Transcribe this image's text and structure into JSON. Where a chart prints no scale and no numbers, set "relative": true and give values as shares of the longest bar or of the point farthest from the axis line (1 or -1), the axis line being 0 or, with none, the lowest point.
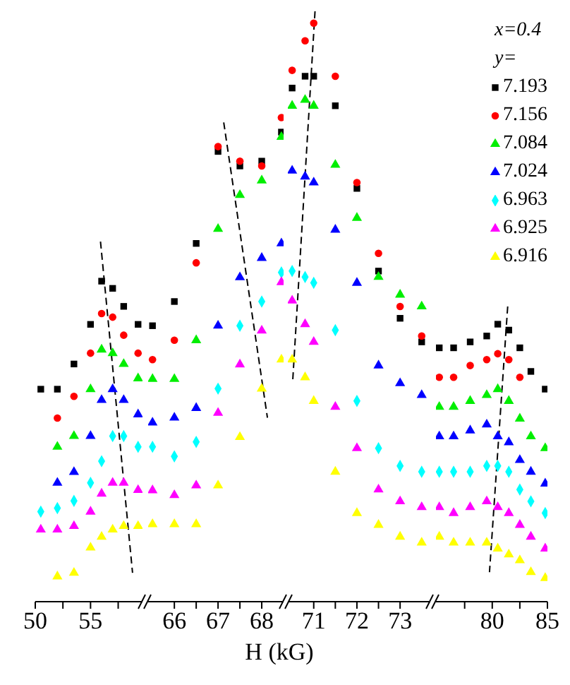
{
  "chart_data": [
    {
      "type": "scatter",
      "relative": true,
      "xlim": [
        50,
        59.7
      ],
      "xticks": [
        50,
        {
          "value": 52.5,
          "label": null
        },
        55,
        {
          "value": 57.5,
          "label": null
        }
      ],
      "x": [
        50.5,
        52,
        53.5,
        55,
        56,
        57,
        58,
        59.3
      ],
      "series": [
        {
          "color": "#000000",
          "marker": "square",
          "values": [
            0.59,
            0.59,
            0.66,
            0.77,
            0.89,
            0.87,
            0.82,
            0.77
          ]
        },
        {
          "color": "#ff0000",
          "marker": "circle",
          "values": [
            null,
            0.51,
            0.57,
            0.69,
            0.8,
            0.79,
            0.74,
            0.69
          ]
        },
        {
          "color": "#00ee00",
          "marker": "triangle",
          "values": [
            null,
            0.43,
            0.46,
            0.59,
            0.7,
            0.69,
            0.66,
            0.62
          ]
        },
        {
          "color": "#0000ff",
          "marker": "triangle",
          "values": [
            null,
            0.33,
            0.36,
            0.46,
            0.56,
            0.59,
            0.56,
            0.52
          ]
        },
        {
          "color": "#00ffff",
          "marker": "diamond",
          "values": [
            0.25,
            0.26,
            0.28,
            0.33,
            0.39,
            0.46,
            0.46,
            0.43
          ]
        },
        {
          "color": "#ff00ff",
          "marker": "triangle",
          "values": [
            0.2,
            0.2,
            0.21,
            0.25,
            0.3,
            0.33,
            0.33,
            0.31
          ]
        },
        {
          "color": "#ffff00",
          "marker": "triangle",
          "values": [
            null,
            0.07,
            0.08,
            0.15,
            0.18,
            0.2,
            0.21,
            0.21
          ]
        },
        {
          "type": "line",
          "line_style": "dashed",
          "color": "#000000",
          "x": [
            55.9,
            58.8
          ],
          "values": [
            1,
            0.08
          ]
        }
      ]
    },
    {
      "type": "scatter",
      "relative": true,
      "xlim": [
        65.4,
        68.5
      ],
      "xticks": [
        66,
        {
          "value": 66.5,
          "label": null
        },
        67,
        {
          "value": 67.5,
          "label": null
        },
        68
      ],
      "x": [
        65.5,
        66,
        66.5,
        67,
        67.5,
        68,
        68.45
      ],
      "series": [
        {
          "color": "#000000",
          "marker": "square",
          "values": [
            0.57,
            0.62,
            0.74,
            0.93,
            0.9,
            0.91,
            0.97
          ]
        },
        {
          "color": "#ff0000",
          "marker": "circle",
          "values": [
            0.5,
            0.54,
            0.7,
            0.94,
            0.91,
            0.9,
            1
          ]
        },
        {
          "color": "#00ee00",
          "marker": "triangle",
          "values": [
            0.46,
            0.46,
            0.54,
            0.77,
            0.84,
            0.87,
            0.96
          ]
        },
        {
          "color": "#0000ff",
          "marker": "triangle",
          "values": [
            0.37,
            0.38,
            0.4,
            0.57,
            0.67,
            0.71,
            0.74
          ]
        },
        {
          "color": "#00ffff",
          "marker": "diamond",
          "values": [
            0.32,
            0.3,
            0.33,
            0.44,
            0.57,
            0.62,
            0.68
          ]
        },
        {
          "color": "#ff00ff",
          "marker": "triangle",
          "values": [
            0.23,
            0.22,
            0.24,
            0.39,
            0.49,
            0.56,
            0.66
          ]
        },
        {
          "color": "#ffff00",
          "marker": "triangle",
          "values": [
            0.16,
            0.16,
            0.16,
            0.24,
            0.34,
            0.44,
            0.5
          ]
        },
        {
          "type": "line",
          "line_style": "dashed",
          "color": "#000000",
          "x": [
            67.13,
            68.13
          ],
          "values": [
            0.99,
            0.38
          ]
        }
      ]
    },
    {
      "type": "scatter",
      "relative": true,
      "xlabel": "H (kG)",
      "xlim": [
        70.4,
        73.7
      ],
      "xticks": [
        71,
        {
          "value": 71.5,
          "label": null
        },
        72,
        {
          "value": 72.5,
          "label": null
        },
        73
      ],
      "x": [
        70.5,
        70.8,
        71,
        71.5,
        72,
        72.5,
        73,
        73.5
      ],
      "series": [
        {
          "color": "#000000",
          "marker": "square",
          "values": [
            0.87,
            0.89,
            0.89,
            0.84,
            0.7,
            0.56,
            0.48,
            0.44
          ]
        },
        {
          "color": "#ff0000",
          "marker": "circle",
          "values": [
            0.9,
            0.95,
            0.98,
            0.89,
            0.71,
            0.59,
            0.5,
            0.45
          ]
        },
        {
          "color": "#00ee00",
          "marker": "triangle",
          "values": [
            0.84,
            0.85,
            0.84,
            0.74,
            0.65,
            0.55,
            0.52,
            0.5
          ]
        },
        {
          "color": "#0000ff",
          "marker": "triangle",
          "values": [
            0.73,
            0.72,
            0.71,
            0.63,
            0.54,
            0.4,
            0.37,
            0.35
          ]
        },
        {
          "color": "#00ffff",
          "marker": "diamond",
          "values": [
            0.56,
            0.55,
            0.54,
            0.46,
            0.34,
            0.26,
            0.23,
            0.22
          ]
        },
        {
          "color": "#ff00ff",
          "marker": "triangle",
          "values": [
            0.51,
            0.47,
            0.44,
            0.33,
            0.26,
            0.19,
            0.17,
            0.16
          ]
        },
        {
          "color": "#ffff00",
          "marker": "triangle",
          "values": [
            0.41,
            0.38,
            0.34,
            0.22,
            0.15,
            0.13,
            0.11,
            0.1
          ]
        },
        {
          "type": "line",
          "line_style": "dashed",
          "color": "#000000",
          "x": [
            71.03,
            70.51
          ],
          "values": [
            1,
            0.37
          ]
        }
      ]
    },
    {
      "type": "scatter",
      "relative": true,
      "legend": "top right",
      "legend_title": "x=0.4\ny=",
      "xlim": [
        74.9,
        85
      ],
      "xticks": [
        {
          "value": 77.5,
          "label": null
        },
        80,
        {
          "value": 82.5,
          "label": null
        },
        85
      ],
      "x": [
        75.2,
        76.5,
        78,
        79.5,
        80.5,
        81.5,
        82.5,
        83.5,
        84.8
      ],
      "series": [
        {
          "name": "7.193",
          "color": "#000000",
          "marker": "square",
          "values": [
            0.86,
            0.86,
            0.88,
            0.9,
            0.94,
            0.92,
            0.86,
            0.78,
            0.72
          ]
        },
        {
          "name": "7.156",
          "color": "#ff0000",
          "marker": "circle",
          "values": [
            0.76,
            0.76,
            0.8,
            0.82,
            0.84,
            0.82,
            0.76,
            null,
            null
          ]
        },
        {
          "name": "7.084",
          "color": "#00ee00",
          "marker": "triangle",
          "values": [
            0.66,
            0.66,
            0.68,
            0.7,
            0.72,
            0.68,
            0.62,
            0.56,
            0.52
          ]
        },
        {
          "name": "7.024",
          "color": "#0000ff",
          "marker": "triangle",
          "values": [
            0.56,
            0.56,
            0.58,
            0.6,
            0.56,
            0.54,
            0.48,
            0.44,
            0.4
          ]
        },
        {
          "name": "6.963",
          "color": "#00ffff",
          "marker": "diamond",
          "values": [
            0.44,
            0.44,
            0.44,
            0.46,
            0.46,
            0.44,
            0.38,
            0.34,
            0.3
          ]
        },
        {
          "name": "6.925",
          "color": "#ff00ff",
          "marker": "triangle",
          "values": [
            0.32,
            0.3,
            0.32,
            0.34,
            0.32,
            0.3,
            0.26,
            0.22,
            0.18
          ]
        },
        {
          "name": "6.916",
          "color": "#ffff00",
          "marker": "triangle",
          "values": [
            0.22,
            0.2,
            0.2,
            0.2,
            0.18,
            0.16,
            0.14,
            0.1,
            0.08
          ]
        },
        {
          "type": "line",
          "line_style": "dashed",
          "color": "#000000",
          "x": [
            81.4,
            79.75
          ],
          "values": [
            1,
            0.1
          ]
        }
      ]
    }
  ]
}
